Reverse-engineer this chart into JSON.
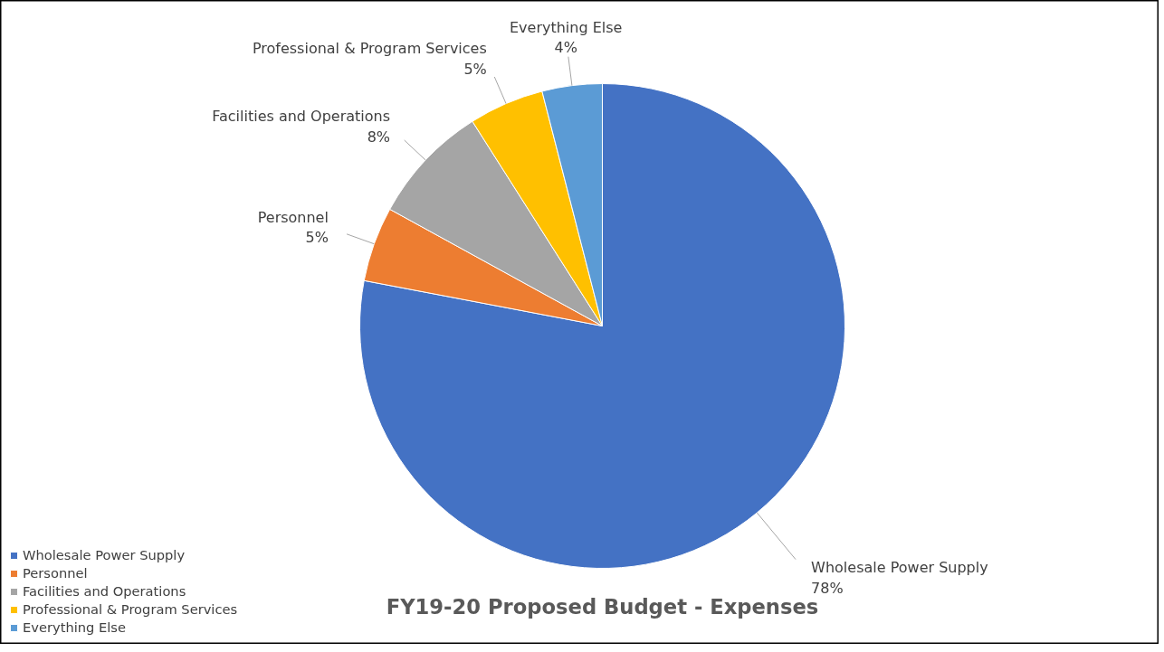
{
  "chart_data": {
    "type": "pie",
    "title": "FY19-20 Proposed Budget - Expenses",
    "categories": [
      "Wholesale Power Supply",
      "Personnel",
      "Facilities and Operations",
      "Professional & Program Services",
      "Everything Else"
    ],
    "values": [
      78,
      5,
      8,
      5,
      4
    ],
    "colors": [
      "#4472c4",
      "#ed7d31",
      "#a5a5a5",
      "#ffc000",
      "#5b9bd5"
    ],
    "value_labels": [
      "78%",
      "5%",
      "8%",
      "5%",
      "4%"
    ],
    "legend": "bottom left"
  }
}
